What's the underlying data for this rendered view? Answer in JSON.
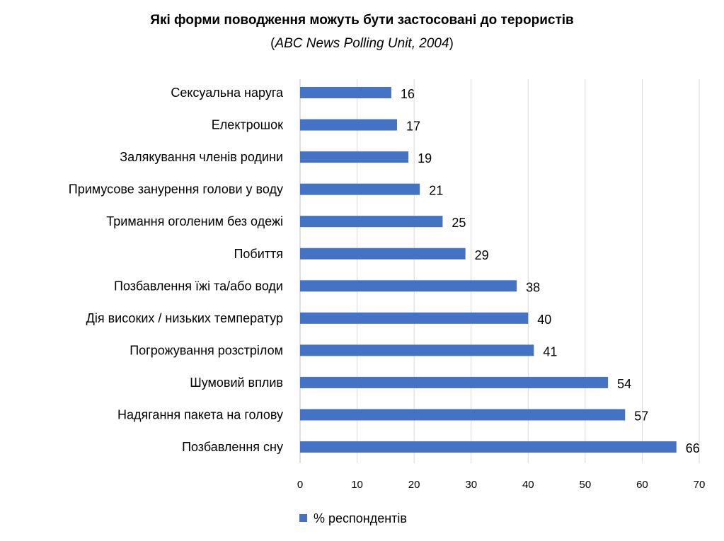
{
  "chart_data": {
    "type": "bar",
    "orientation": "horizontal",
    "title": "Які форми поводження можуть бути застосовані до терористів",
    "subtitle_prefix": "(",
    "subtitle_source": "ABC News Polling Unit, 2004",
    "subtitle_suffix": ")",
    "categories": [
      "Сексуальна наруга",
      "Електрошок",
      "Залякування членів родини",
      "Примусове занурення голови у воду",
      "Тримання оголеним без одежі",
      "Побиття",
      "Позбавлення їжі та/або води",
      "Дія високих / низьких температур",
      "Погрожування розстрілом",
      "Шумовий вплив",
      "Надягання пакета на голову",
      "Позбавлення сну"
    ],
    "series": [
      {
        "name": "% респондентів",
        "values": [
          16,
          17,
          19,
          21,
          25,
          29,
          38,
          40,
          41,
          54,
          57,
          66
        ],
        "color": "#4472C4"
      }
    ],
    "xlim": [
      0,
      70
    ],
    "xticks": [
      0,
      10,
      20,
      30,
      40,
      50,
      60,
      70
    ],
    "grid": true,
    "legend": "bottom-left",
    "data_labels": true
  }
}
